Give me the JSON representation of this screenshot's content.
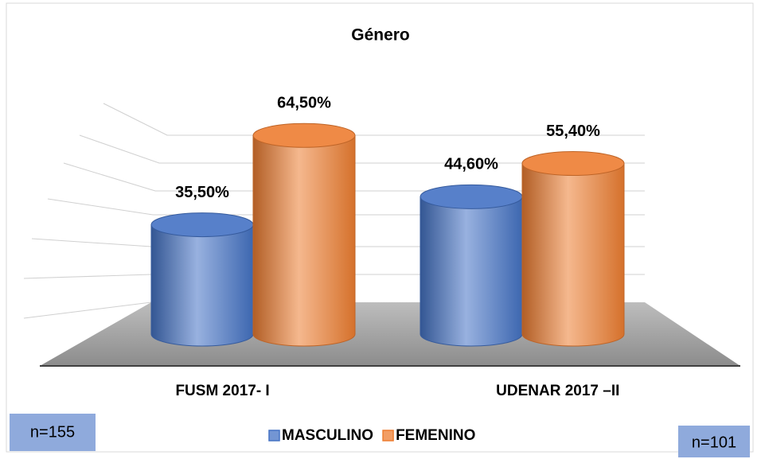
{
  "chart_data": {
    "type": "bar",
    "title": "Género",
    "categories": [
      "FUSM 2017- I",
      "UDENAR 2017 –II"
    ],
    "series": [
      {
        "name": "MASCULINO",
        "color": "#4472c4",
        "values": [
          35.5,
          44.6
        ],
        "value_labels": [
          "35,50%",
          "44,60%"
        ]
      },
      {
        "name": "FEMENINO",
        "color": "#ed7d31",
        "values": [
          64.5,
          55.4
        ],
        "value_labels": [
          "64,50%",
          "55,40%"
        ]
      }
    ],
    "ylim": [
      0,
      70
    ],
    "annotations": [
      "n=155",
      "n=101"
    ]
  }
}
